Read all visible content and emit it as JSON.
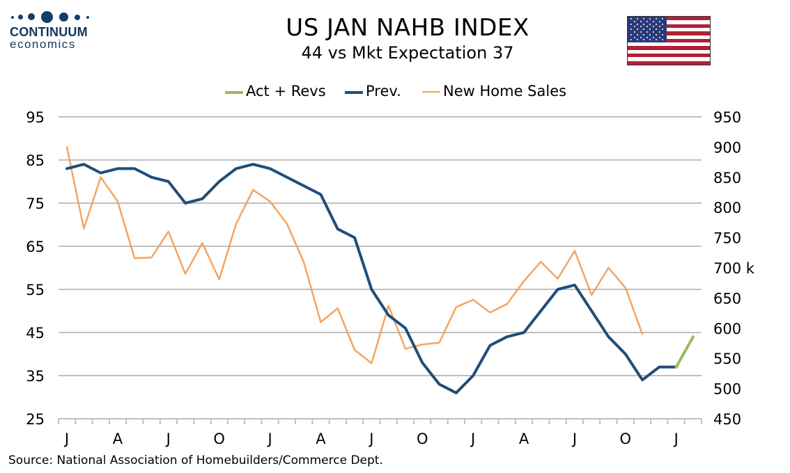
{
  "logo": {
    "line1": "CONTINUUM",
    "line2": "economics"
  },
  "title": "US JAN NAHB INDEX",
  "subtitle": "44 vs Mkt Expectation 37",
  "source": "Source: National Association of Homebuilders/Commerce Dept.",
  "colors": {
    "act": "#9bbb59",
    "prev": "#1f4e79",
    "sales": "#f4a460",
    "grid": "#bfbfbf"
  },
  "chart_data": {
    "type": "line",
    "title": "US JAN NAHB INDEX",
    "subtitle": "44 vs Mkt Expectation 37",
    "x_tick_labels": [
      "J",
      "A",
      "J",
      "O",
      "J",
      "A",
      "J",
      "O",
      "J",
      "A",
      "J",
      "O",
      "J"
    ],
    "y_left": {
      "range": [
        25,
        95
      ],
      "ticks": [
        "25",
        "35",
        "45",
        "55",
        "65",
        "75",
        "85",
        "95"
      ]
    },
    "y_right": {
      "range": [
        450,
        950
      ],
      "ticks": [
        "450",
        "500",
        "550",
        "600",
        "650",
        "700 k",
        "750",
        "800",
        "850",
        "900",
        "950"
      ]
    },
    "grid": true,
    "legend_position": "top",
    "series": [
      {
        "name": "Act + Revs",
        "axis": "left",
        "x": [
          36,
          37
        ],
        "values": [
          37,
          44
        ]
      },
      {
        "name": "Prev.",
        "axis": "left",
        "x": [
          0,
          1,
          2,
          3,
          4,
          5,
          6,
          7,
          8,
          9,
          10,
          11,
          12,
          13,
          14,
          15,
          16,
          17,
          18,
          19,
          20,
          21,
          22,
          23,
          24,
          25,
          26,
          27,
          28,
          29,
          30,
          31,
          32,
          33,
          34,
          35,
          36
        ],
        "values": [
          83,
          84,
          82,
          83,
          83,
          81,
          80,
          75,
          76,
          80,
          83,
          84,
          83,
          81,
          79,
          77,
          69,
          67,
          55,
          49,
          46,
          38,
          33,
          31,
          35,
          42,
          44,
          45,
          50,
          55,
          56,
          50,
          44,
          40,
          34,
          37,
          37
        ]
      },
      {
        "name": "New Home Sales",
        "axis": "right",
        "x": [
          0,
          1,
          2,
          3,
          4,
          5,
          6,
          7,
          8,
          9,
          10,
          11,
          12,
          13,
          14,
          15,
          16,
          17,
          18,
          19,
          20,
          21,
          22,
          23,
          24,
          25,
          26,
          27,
          28,
          29,
          30,
          31,
          32,
          33,
          34
        ],
        "values": [
          900,
          765,
          850,
          810,
          716,
          717,
          760,
          690,
          741,
          681,
          773,
          829,
          810,
          773,
          709,
          610,
          633,
          564,
          542,
          637,
          566,
          573,
          576,
          635,
          647,
          626,
          640,
          678,
          710,
          682,
          728,
          655,
          700,
          667,
          590
        ]
      }
    ]
  }
}
